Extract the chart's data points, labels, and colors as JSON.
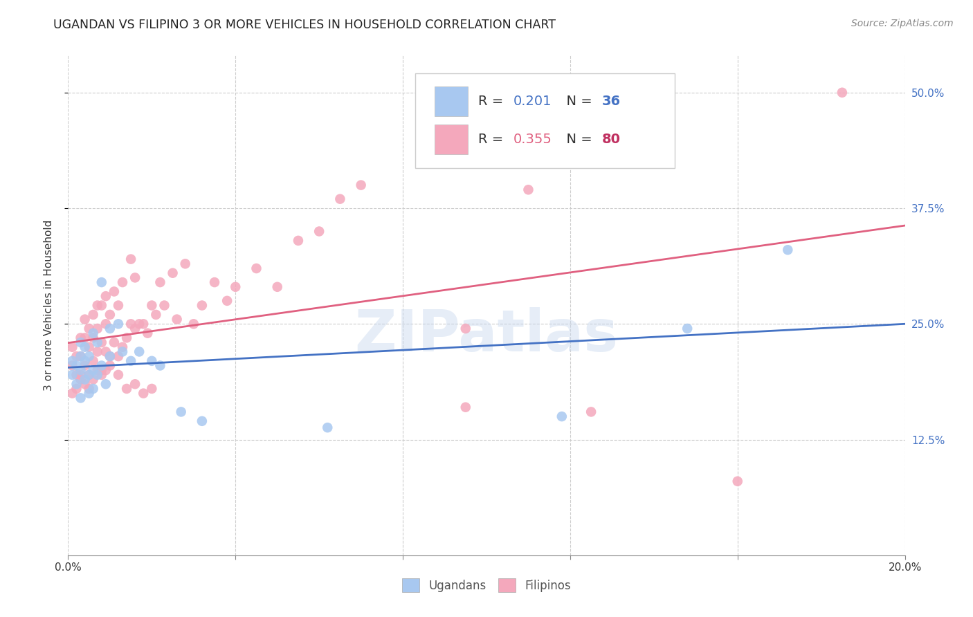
{
  "title": "UGANDAN VS FILIPINO 3 OR MORE VEHICLES IN HOUSEHOLD CORRELATION CHART",
  "source": "Source: ZipAtlas.com",
  "ylabel": "3 or more Vehicles in Household",
  "watermark": "ZIPatlas",
  "xlim": [
    0.0,
    0.2
  ],
  "ylim": [
    0.0,
    0.54
  ],
  "x_ticks": [
    0.0,
    0.04,
    0.08,
    0.12,
    0.16,
    0.2
  ],
  "y_ticks": [
    0.125,
    0.25,
    0.375,
    0.5
  ],
  "y_tick_labels_right": [
    "12.5%",
    "25.0%",
    "37.5%",
    "50.0%"
  ],
  "legend_R_ugandan": "0.201",
  "legend_N_ugandan": "36",
  "legend_R_filipino": "0.355",
  "legend_N_filipino": "80",
  "ugandan_color": "#a8c8f0",
  "filipino_color": "#f4a8bc",
  "ugandan_line_color": "#4472c4",
  "filipino_line_color": "#e06080",
  "background_color": "#ffffff",
  "grid_color": "#cccccc",
  "ugandan_scatter_x": [
    0.001,
    0.001,
    0.002,
    0.002,
    0.003,
    0.003,
    0.003,
    0.003,
    0.004,
    0.004,
    0.004,
    0.005,
    0.005,
    0.005,
    0.006,
    0.006,
    0.006,
    0.007,
    0.007,
    0.008,
    0.008,
    0.009,
    0.01,
    0.01,
    0.012,
    0.013,
    0.015,
    0.017,
    0.02,
    0.022,
    0.027,
    0.032,
    0.062,
    0.118,
    0.148,
    0.172
  ],
  "ugandan_scatter_y": [
    0.195,
    0.21,
    0.185,
    0.205,
    0.17,
    0.2,
    0.215,
    0.23,
    0.19,
    0.21,
    0.225,
    0.175,
    0.195,
    0.215,
    0.18,
    0.2,
    0.24,
    0.195,
    0.23,
    0.205,
    0.295,
    0.185,
    0.215,
    0.245,
    0.25,
    0.22,
    0.21,
    0.22,
    0.21,
    0.205,
    0.155,
    0.145,
    0.138,
    0.15,
    0.245,
    0.33
  ],
  "filipino_scatter_x": [
    0.001,
    0.001,
    0.002,
    0.002,
    0.003,
    0.003,
    0.003,
    0.004,
    0.004,
    0.004,
    0.005,
    0.005,
    0.005,
    0.006,
    0.006,
    0.006,
    0.007,
    0.007,
    0.007,
    0.008,
    0.008,
    0.008,
    0.009,
    0.009,
    0.009,
    0.01,
    0.01,
    0.011,
    0.011,
    0.012,
    0.012,
    0.013,
    0.013,
    0.014,
    0.015,
    0.015,
    0.016,
    0.016,
    0.017,
    0.018,
    0.019,
    0.02,
    0.021,
    0.022,
    0.023,
    0.025,
    0.026,
    0.028,
    0.03,
    0.032,
    0.035,
    0.038,
    0.04,
    0.045,
    0.05,
    0.055,
    0.06,
    0.065,
    0.07,
    0.001,
    0.002,
    0.003,
    0.004,
    0.005,
    0.006,
    0.007,
    0.008,
    0.009,
    0.01,
    0.012,
    0.014,
    0.016,
    0.018,
    0.02,
    0.095,
    0.11,
    0.16,
    0.185,
    0.095,
    0.125
  ],
  "filipino_scatter_y": [
    0.205,
    0.225,
    0.195,
    0.215,
    0.195,
    0.215,
    0.235,
    0.205,
    0.235,
    0.255,
    0.195,
    0.225,
    0.245,
    0.21,
    0.235,
    0.26,
    0.22,
    0.245,
    0.27,
    0.2,
    0.23,
    0.27,
    0.22,
    0.25,
    0.28,
    0.215,
    0.26,
    0.23,
    0.285,
    0.215,
    0.27,
    0.225,
    0.295,
    0.235,
    0.25,
    0.32,
    0.245,
    0.3,
    0.25,
    0.25,
    0.24,
    0.27,
    0.26,
    0.295,
    0.27,
    0.305,
    0.255,
    0.315,
    0.25,
    0.27,
    0.295,
    0.275,
    0.29,
    0.31,
    0.29,
    0.34,
    0.35,
    0.385,
    0.4,
    0.175,
    0.18,
    0.19,
    0.185,
    0.18,
    0.19,
    0.2,
    0.195,
    0.2,
    0.205,
    0.195,
    0.18,
    0.185,
    0.175,
    0.18,
    0.16,
    0.395,
    0.08,
    0.5,
    0.245,
    0.155
  ]
}
